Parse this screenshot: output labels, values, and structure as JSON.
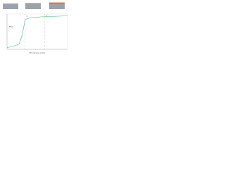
{
  "chart_data": {
    "type": "line",
    "xlabel": "Thickness (nm)",
    "x": [
      0,
      10,
      20,
      25,
      30,
      40,
      55,
      70,
      85,
      100
    ],
    "series": [
      {
        "name": "Film",
        "color": "#3cb878",
        "values": [
          5,
          8,
          15,
          40,
          85,
          90,
          92,
          93,
          94,
          95
        ]
      }
    ],
    "markers": [
      30,
      62
    ],
    "marker_labels": [
      "1",
      "2"
    ],
    "xlim": [
      0,
      100
    ],
    "ylim": [
      0,
      100
    ]
  }
}
